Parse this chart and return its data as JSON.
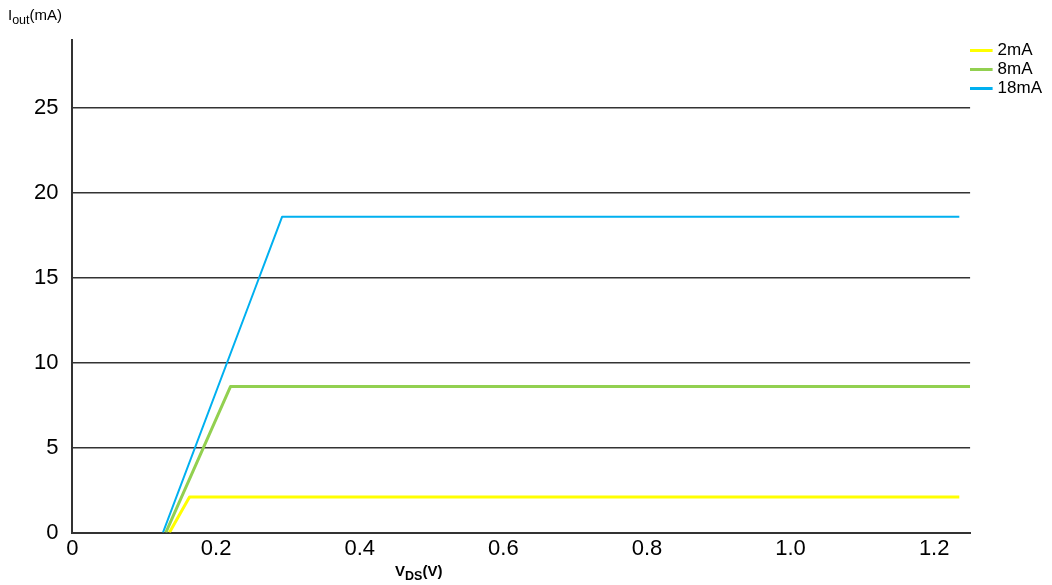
{
  "chart_data": {
    "type": "line",
    "xlabel": "V$_{DS}$(V)",
    "ylabel": "I$_{out}$(mA)",
    "xlim": [
      0,
      1.25
    ],
    "xticks": [
      0,
      0.2,
      0.4,
      0.6,
      0.8,
      {
        "value": 1,
        "label": "1.0"
      },
      1.2
    ],
    "ylim": [
      0,
      29
    ],
    "yticks": [
      0,
      5,
      10,
      15,
      20,
      25
    ],
    "grid": "y",
    "legend": "right",
    "marker": "none",
    "line_style": "solid",
    "series": [
      {
        "name": "2mA",
        "color": "#ffff00",
        "x": [
          0.135,
          0.163,
          1.235
        ],
        "values": [
          0,
          2.1,
          2.1
        ]
      },
      {
        "name": "8mA",
        "color": "#92d050",
        "x": [
          0.13,
          0.22,
          1.25
        ],
        "values": [
          0,
          8.6,
          8.6
        ]
      },
      {
        "name": "18mA",
        "color": "#00b0f0",
        "x": [
          0.126,
          0.292,
          1.235
        ],
        "values": [
          0,
          18.6,
          18.6
        ]
      }
    ]
  }
}
